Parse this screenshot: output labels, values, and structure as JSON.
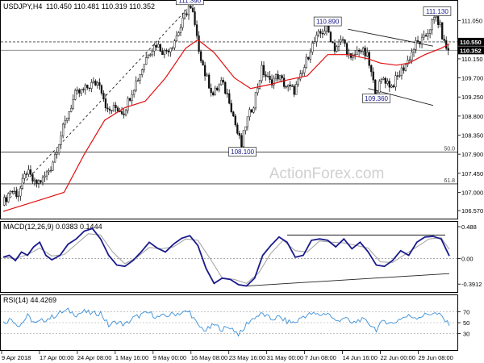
{
  "chart_data": [
    {
      "type": "candlestick",
      "title": "USDJPY,H4",
      "quote": "110.450 110.481 110.319 110.352",
      "y_axis": {
        "ylim": [
          106.4,
          111.5
        ],
        "ticks": [
          106.57,
          107.0,
          107.45,
          107.9,
          108.35,
          108.8,
          109.25,
          109.7,
          110.15,
          110.6,
          111.05
        ],
        "labels": [
          "106.570",
          "107.000",
          "107.450",
          "107.900",
          "108.350",
          "108.800",
          "109.250",
          "109.700",
          "110.150",
          "110.600",
          "111.050"
        ]
      },
      "x_axis": {
        "labels": [
          "9 Apr 2018",
          "17 Apr 00:00",
          "24 Apr 08:00",
          "1 May 16:00",
          "9 May 00:00",
          "16 May 08:00",
          "23 May 16:00",
          "31 May 00:00",
          "7 Jun 08:00",
          "14 Jun 16:00",
          "22 Jun 00:00",
          "29 Jun 08:00"
        ]
      },
      "price_path": [
        [
          0,
          106.7
        ],
        [
          4,
          107.05
        ],
        [
          8,
          106.95
        ],
        [
          12,
          107.5
        ],
        [
          16,
          107.2
        ],
        [
          20,
          107.3
        ],
        [
          24,
          107.6
        ],
        [
          28,
          108.2
        ],
        [
          32,
          108.8
        ],
        [
          36,
          109.3
        ],
        [
          40,
          109.4
        ],
        [
          44,
          109.55
        ],
        [
          48,
          109.6
        ],
        [
          52,
          108.9
        ],
        [
          56,
          109.0
        ],
        [
          60,
          108.9
        ],
        [
          64,
          109.4
        ],
        [
          68,
          109.8
        ],
        [
          72,
          110.3
        ],
        [
          76,
          110.5
        ],
        [
          80,
          110.3
        ],
        [
          84,
          110.5
        ],
        [
          88,
          110.9
        ],
        [
          92,
          111.39
        ],
        [
          94,
          111.2
        ],
        [
          96,
          110.6
        ],
        [
          100,
          109.8
        ],
        [
          104,
          109.3
        ],
        [
          108,
          109.6
        ],
        [
          112,
          109.2
        ],
        [
          116,
          108.4
        ],
        [
          118,
          108.1
        ],
        [
          120,
          108.6
        ],
        [
          124,
          109.1
        ],
        [
          128,
          109.9
        ],
        [
          132,
          109.6
        ],
        [
          136,
          109.75
        ],
        [
          140,
          109.5
        ],
        [
          144,
          109.4
        ],
        [
          148,
          109.8
        ],
        [
          152,
          110.4
        ],
        [
          156,
          110.7
        ],
        [
          160,
          110.89
        ],
        [
          164,
          110.4
        ],
        [
          168,
          110.6
        ],
        [
          172,
          110.1
        ],
        [
          176,
          110.4
        ],
        [
          180,
          110.2
        ],
        [
          182,
          109.8
        ],
        [
          184,
          109.36
        ],
        [
          188,
          109.7
        ],
        [
          192,
          109.5
        ],
        [
          196,
          109.8
        ],
        [
          200,
          110.1
        ],
        [
          204,
          110.5
        ],
        [
          208,
          110.6
        ],
        [
          212,
          111.0
        ],
        [
          214,
          111.13
        ],
        [
          216,
          110.9
        ],
        [
          218,
          110.5
        ],
        [
          220,
          110.352
        ]
      ],
      "moving_average": [
        [
          0,
          106.55
        ],
        [
          20,
          106.85
        ],
        [
          30,
          107.0
        ],
        [
          40,
          107.9
        ],
        [
          50,
          108.7
        ],
        [
          60,
          109.0
        ],
        [
          70,
          109.15
        ],
        [
          80,
          109.7
        ],
        [
          90,
          110.4
        ],
        [
          96,
          110.6
        ],
        [
          104,
          110.3
        ],
        [
          114,
          109.7
        ],
        [
          122,
          109.45
        ],
        [
          132,
          109.55
        ],
        [
          140,
          109.65
        ],
        [
          150,
          109.75
        ],
        [
          160,
          110.25
        ],
        [
          170,
          110.25
        ],
        [
          180,
          110.15
        ],
        [
          186,
          110.05
        ],
        [
          194,
          110.0
        ],
        [
          200,
          110.05
        ],
        [
          208,
          110.25
        ],
        [
          216,
          110.4
        ],
        [
          220,
          110.5
        ]
      ],
      "price_labels": [
        {
          "text": "111.390",
          "x": 92,
          "y": 111.39
        },
        {
          "text": "108.100",
          "x": 118,
          "y": 108.1
        },
        {
          "text": "110.890",
          "x": 160,
          "y": 110.89
        },
        {
          "text": "109.360",
          "x": 184,
          "y": 109.36
        },
        {
          "text": "111.130",
          "x": 214,
          "y": 111.13
        }
      ],
      "right_badges": [
        {
          "text": "110.550",
          "y": 110.55,
          "color": "#000000",
          "line_color": "#404040",
          "dashed": true
        },
        {
          "text": "110.352",
          "y": 110.352,
          "color": "#000000",
          "line_color": "#808080",
          "dashed": false
        }
      ],
      "fib_levels": [
        {
          "label": "50.0",
          "y": 107.95
        },
        {
          "label": "61.8",
          "y": 107.2
        }
      ],
      "trendlines": [
        {
          "from": [
            0,
            106.7
          ],
          "to": [
            92,
            111.39
          ],
          "dashed": true
        },
        {
          "from": [
            170,
            110.85
          ],
          "to": [
            212,
            110.45
          ],
          "dashed": false
        },
        {
          "from": [
            180,
            109.45
          ],
          "to": [
            212,
            109.05
          ],
          "dashed": false
        }
      ],
      "watermark": "ActionForex.com"
    },
    {
      "type": "line",
      "title": "MACD(12,26,9) 0.0383 0.1444",
      "ylim": [
        -0.5,
        0.55
      ],
      "tick_labels": [
        "0.488",
        "0.00",
        "-0.3912"
      ],
      "tick_values": [
        0.488,
        0.0,
        -0.3912
      ],
      "series": [
        {
          "name": "MACD",
          "color": "#1a1a8c",
          "points": [
            [
              0,
              0.02
            ],
            [
              3,
              0.05
            ],
            [
              6,
              -0.03
            ],
            [
              9,
              0.1
            ],
            [
              12,
              0.05
            ],
            [
              15,
              0.18
            ],
            [
              18,
              0.25
            ],
            [
              21,
              0.05
            ],
            [
              24,
              -0.02
            ],
            [
              28,
              0.05
            ],
            [
              32,
              0.22
            ],
            [
              36,
              0.3
            ],
            [
              40,
              0.42
            ],
            [
              44,
              0.46
            ],
            [
              48,
              0.3
            ],
            [
              52,
              0.05
            ],
            [
              56,
              -0.1
            ],
            [
              60,
              -0.12
            ],
            [
              64,
              -0.03
            ],
            [
              68,
              0.1
            ],
            [
              72,
              0.25
            ],
            [
              76,
              0.16
            ],
            [
              80,
              0.1
            ],
            [
              84,
              0.22
            ],
            [
              88,
              0.31
            ],
            [
              92,
              0.35
            ],
            [
              96,
              0.2
            ],
            [
              100,
              -0.15
            ],
            [
              104,
              -0.38
            ],
            [
              108,
              -0.3
            ],
            [
              112,
              -0.32
            ],
            [
              116,
              -0.4
            ],
            [
              120,
              -0.42
            ],
            [
              124,
              -0.3
            ],
            [
              128,
              0.05
            ],
            [
              132,
              0.2
            ],
            [
              136,
              0.33
            ],
            [
              140,
              0.25
            ],
            [
              144,
              0.02
            ],
            [
              148,
              0.05
            ],
            [
              152,
              0.28
            ],
            [
              156,
              0.3
            ],
            [
              160,
              0.28
            ],
            [
              164,
              0.18
            ],
            [
              168,
              0.3
            ],
            [
              172,
              0.15
            ],
            [
              176,
              0.25
            ],
            [
              180,
              0.1
            ],
            [
              184,
              -0.1
            ],
            [
              188,
              -0.12
            ],
            [
              192,
              -0.03
            ],
            [
              196,
              0.12
            ],
            [
              200,
              0.05
            ],
            [
              204,
              0.25
            ],
            [
              208,
              0.33
            ],
            [
              212,
              0.34
            ],
            [
              216,
              0.3
            ],
            [
              220,
              0.04
            ]
          ]
        },
        {
          "name": "Signal",
          "color": "#a0a0a0",
          "points": [
            [
              0,
              0.02
            ],
            [
              6,
              0.0
            ],
            [
              12,
              0.06
            ],
            [
              18,
              0.16
            ],
            [
              24,
              0.04
            ],
            [
              30,
              0.06
            ],
            [
              36,
              0.22
            ],
            [
              42,
              0.38
            ],
            [
              48,
              0.36
            ],
            [
              54,
              0.1
            ],
            [
              60,
              -0.08
            ],
            [
              66,
              0.02
            ],
            [
              72,
              0.17
            ],
            [
              78,
              0.15
            ],
            [
              84,
              0.18
            ],
            [
              90,
              0.3
            ],
            [
              96,
              0.28
            ],
            [
              102,
              0.0
            ],
            [
              108,
              -0.3
            ],
            [
              114,
              -0.32
            ],
            [
              120,
              -0.38
            ],
            [
              126,
              -0.22
            ],
            [
              132,
              0.08
            ],
            [
              138,
              0.28
            ],
            [
              144,
              0.12
            ],
            [
              150,
              0.1
            ],
            [
              156,
              0.27
            ],
            [
              162,
              0.25
            ],
            [
              168,
              0.24
            ],
            [
              174,
              0.2
            ],
            [
              180,
              0.16
            ],
            [
              186,
              -0.05
            ],
            [
              192,
              -0.06
            ],
            [
              198,
              0.06
            ],
            [
              204,
              0.18
            ],
            [
              210,
              0.3
            ],
            [
              216,
              0.32
            ],
            [
              220,
              0.14
            ]
          ]
        }
      ],
      "trendlines": [
        {
          "from": [
            140,
            0.36
          ],
          "to": [
            218,
            0.36
          ]
        },
        {
          "from": [
            120,
            -0.42
          ],
          "to": [
            220,
            -0.23
          ]
        }
      ]
    },
    {
      "type": "line",
      "title": "RSI(14) 44.4269",
      "ylim": [
        0,
        100
      ],
      "tick_labels": [
        "70",
        "50",
        "30"
      ],
      "tick_values": [
        70,
        50,
        30
      ],
      "series": [
        {
          "name": "RSI",
          "color": "#3b8fd6",
          "points": [
            [
              0,
              50
            ],
            [
              4,
              57
            ],
            [
              8,
              44
            ],
            [
              12,
              62
            ],
            [
              16,
              48
            ],
            [
              20,
              55
            ],
            [
              24,
              60
            ],
            [
              28,
              68
            ],
            [
              32,
              72
            ],
            [
              36,
              65
            ],
            [
              40,
              70
            ],
            [
              44,
              66
            ],
            [
              48,
              68
            ],
            [
              52,
              45
            ],
            [
              56,
              52
            ],
            [
              60,
              46
            ],
            [
              64,
              58
            ],
            [
              68,
              64
            ],
            [
              72,
              68
            ],
            [
              76,
              60
            ],
            [
              80,
              62
            ],
            [
              84,
              66
            ],
            [
              88,
              68
            ],
            [
              92,
              70
            ],
            [
              96,
              44
            ],
            [
              100,
              36
            ],
            [
              104,
              46
            ],
            [
              108,
              38
            ],
            [
              112,
              42
            ],
            [
              116,
              30
            ],
            [
              118,
              33
            ],
            [
              120,
              48
            ],
            [
              124,
              60
            ],
            [
              128,
              66
            ],
            [
              132,
              56
            ],
            [
              136,
              60
            ],
            [
              140,
              52
            ],
            [
              144,
              50
            ],
            [
              148,
              62
            ],
            [
              152,
              66
            ],
            [
              156,
              64
            ],
            [
              160,
              68
            ],
            [
              164,
              52
            ],
            [
              168,
              60
            ],
            [
              172,
              48
            ],
            [
              176,
              56
            ],
            [
              180,
              50
            ],
            [
              184,
              38
            ],
            [
              188,
              54
            ],
            [
              192,
              48
            ],
            [
              196,
              58
            ],
            [
              200,
              62
            ],
            [
              204,
              60
            ],
            [
              208,
              64
            ],
            [
              212,
              68
            ],
            [
              216,
              62
            ],
            [
              220,
              44.4
            ]
          ]
        }
      ]
    }
  ]
}
